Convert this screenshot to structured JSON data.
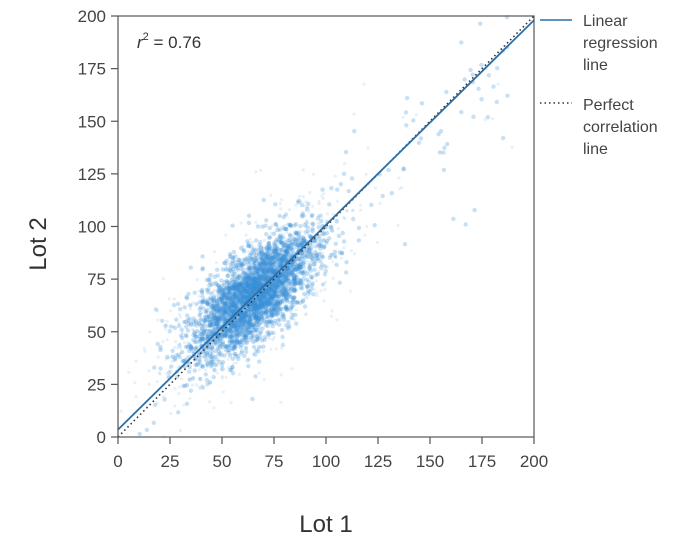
{
  "chart_data": {
    "type": "scatter",
    "title": "",
    "xlabel": "Lot 1",
    "ylabel": "Lot 2",
    "xlim": [
      0,
      200
    ],
    "ylim": [
      0,
      200
    ],
    "xticks": [
      0,
      25,
      50,
      75,
      100,
      125,
      150,
      175,
      200
    ],
    "yticks": [
      0,
      25,
      50,
      75,
      100,
      125,
      150,
      175,
      200
    ],
    "grid": false,
    "legend_position": "right",
    "annotation": {
      "prefix": "r",
      "superscript": "2",
      "text": " = 0.76"
    },
    "scatter_series": {
      "description_color": "#3a8fd9",
      "center_x": 65,
      "center_y": 67,
      "correlation": 0.76
    },
    "regression_line": {
      "name": "Linear regression line",
      "label_lines": [
        "Linear",
        "regression",
        "line"
      ],
      "color": "#2b6ea8",
      "style": "solid",
      "x": [
        0,
        200
      ],
      "y": [
        3.5,
        198
      ]
    },
    "perfect_correlation_line": {
      "name": "Perfect correlation line",
      "label_lines": [
        "Perfect",
        "correlation",
        "line"
      ],
      "color": "#333333",
      "style": "dotted",
      "x": [
        0,
        200
      ],
      "y": [
        0,
        200
      ]
    }
  }
}
